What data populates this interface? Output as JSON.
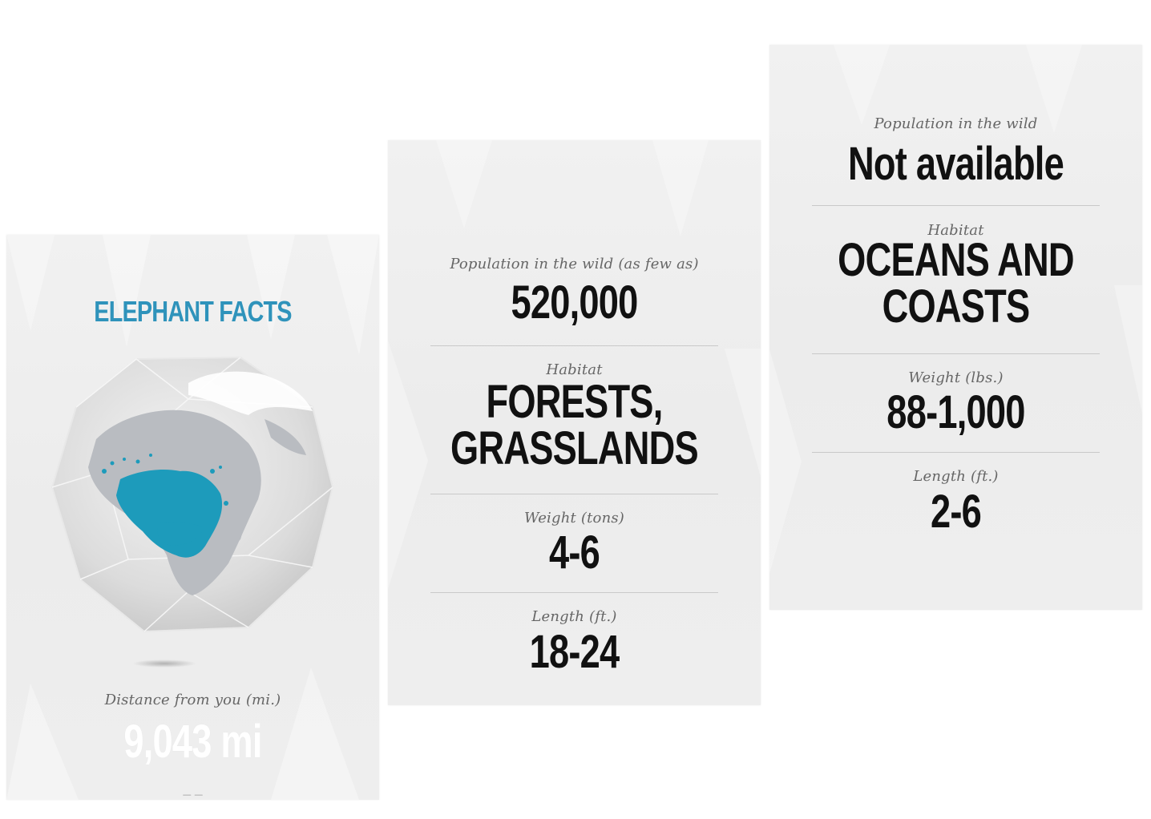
{
  "accent_color": "#2f93bb",
  "cards": [
    {
      "title": "ELEPHANT FACTS",
      "map_highlight_color": "#1d9bbb",
      "distance_label": "Distance from you (mi.)",
      "distance_value": "9,043 mi",
      "footer_fragment": "— —"
    },
    {
      "population_label": "Population in the wild (as few as)",
      "population_value": "520,000",
      "habitat_label": "Habitat",
      "habitat_value_line1": "FORESTS,",
      "habitat_value_line2": "GRASSLANDS",
      "weight_label": "Weight (tons)",
      "weight_value": "4-6",
      "length_label": "Length (ft.)",
      "length_value": "18-24"
    },
    {
      "population_label": "Population in the wild",
      "population_value": "Not available",
      "habitat_label": "Habitat",
      "habitat_value_line1": "OCEANS AND",
      "habitat_value_line2": "COASTS",
      "weight_label": "Weight (lbs.)",
      "weight_value": "88-1,000",
      "length_label": "Length (ft.)",
      "length_value": "2-6"
    }
  ]
}
